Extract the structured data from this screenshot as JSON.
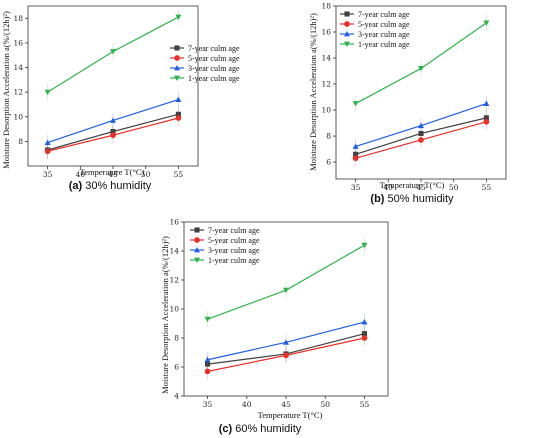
{
  "chart_data": [
    {
      "type": "line",
      "caption_letter": "(a)",
      "caption_text": " 30% humidity",
      "xlabel": "Temperature T(°C)",
      "ylabel": "Moisture Desorption Acceleration a(%/(12h)²)",
      "x": [
        35,
        45,
        55
      ],
      "xlim": [
        32,
        58
      ],
      "xticks": [
        35,
        40,
        45,
        50,
        55
      ],
      "ylim": [
        6,
        19
      ],
      "yticks": [
        8,
        10,
        12,
        14,
        16,
        18
      ],
      "series": [
        {
          "name": "7-year culm age",
          "values": [
            7.3,
            8.8,
            10.2
          ],
          "color": "#404040",
          "marker": "square"
        },
        {
          "name": "5-year culm age",
          "values": [
            7.2,
            8.5,
            9.9
          ],
          "color": "#e8302a",
          "marker": "circle"
        },
        {
          "name": "3-year culm age",
          "values": [
            7.9,
            9.7,
            11.4
          ],
          "color": "#2060e0",
          "marker": "triangle-up"
        },
        {
          "name": "1-year culm age",
          "values": [
            12.0,
            15.3,
            18.1
          ],
          "color": "#2db34a",
          "marker": "triangle-down"
        }
      ]
    },
    {
      "type": "line",
      "caption_letter": "(b)",
      "caption_text": " 50% humidity",
      "xlabel": "Temperature T(°C)",
      "ylabel": "Moisture Desorption Acceleration a(%/(12h)²)",
      "x": [
        35,
        45,
        55
      ],
      "xlim": [
        32,
        58
      ],
      "xticks": [
        35,
        40,
        45,
        50,
        55
      ],
      "ylim": [
        4.7,
        18
      ],
      "yticks": [
        6,
        8,
        10,
        12,
        14,
        16,
        18
      ],
      "series": [
        {
          "name": "7-year culm age",
          "values": [
            6.6,
            8.2,
            9.4
          ],
          "color": "#404040",
          "marker": "square"
        },
        {
          "name": "5-year culm age",
          "values": [
            6.3,
            7.7,
            9.1
          ],
          "color": "#e8302a",
          "marker": "circle"
        },
        {
          "name": "3-year culm age",
          "values": [
            7.2,
            8.8,
            10.5
          ],
          "color": "#2060e0",
          "marker": "triangle-up"
        },
        {
          "name": "1-year culm age",
          "values": [
            10.5,
            13.2,
            16.7
          ],
          "color": "#2db34a",
          "marker": "triangle-down"
        }
      ]
    },
    {
      "type": "line",
      "caption_letter": "(c)",
      "caption_text": " 60% humidity",
      "xlabel": "Temperature T(°C)",
      "ylabel": "Moisture Desorption Acceleration a(%/(12h)²)",
      "x": [
        35,
        45,
        55
      ],
      "xlim": [
        32,
        58
      ],
      "xticks": [
        35,
        40,
        45,
        50,
        55
      ],
      "ylim": [
        4,
        16
      ],
      "yticks": [
        4,
        6,
        8,
        10,
        12,
        14,
        16
      ],
      "series": [
        {
          "name": "7-year culm age",
          "values": [
            6.2,
            6.9,
            8.3
          ],
          "color": "#404040",
          "marker": "square"
        },
        {
          "name": "5-year culm age",
          "values": [
            5.7,
            6.8,
            8.0
          ],
          "color": "#e8302a",
          "marker": "circle"
        },
        {
          "name": "3-year culm age",
          "values": [
            6.5,
            7.7,
            9.1
          ],
          "color": "#2060e0",
          "marker": "triangle-up"
        },
        {
          "name": "1-year culm age",
          "values": [
            9.3,
            11.3,
            14.4
          ],
          "color": "#2db34a",
          "marker": "triangle-down"
        }
      ]
    }
  ]
}
